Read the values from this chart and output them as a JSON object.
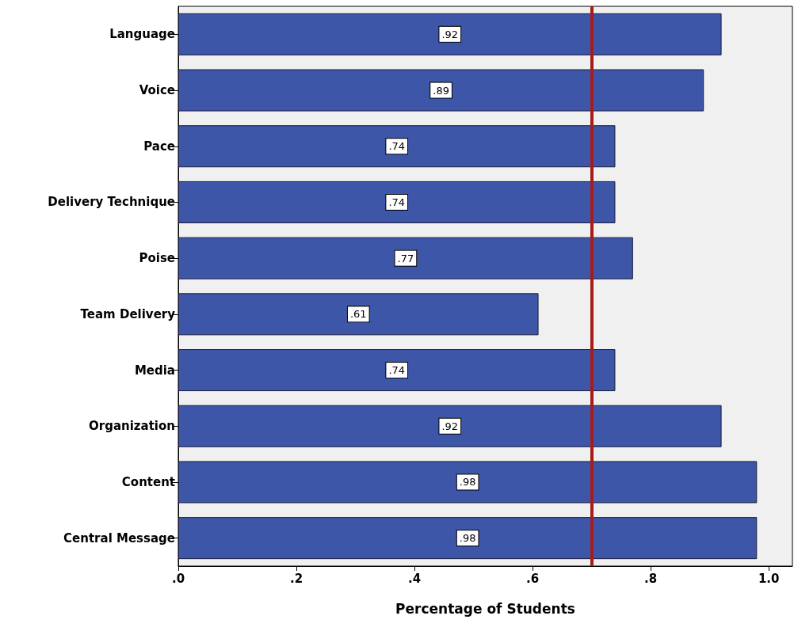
{
  "chart_data": {
    "type": "bar",
    "orientation": "horizontal",
    "xlabel": "Percentage of Students",
    "categories": [
      "Language",
      "Voice",
      "Pace",
      "Delivery Technique",
      "Poise",
      "Team Delivery",
      "Media",
      "Organization",
      "Content",
      "Central Message"
    ],
    "values": [
      0.92,
      0.89,
      0.74,
      0.74,
      0.77,
      0.61,
      0.74,
      0.92,
      0.98,
      0.98
    ],
    "value_labels": [
      ".92",
      ".89",
      ".74",
      ".74",
      ".77",
      ".61",
      ".74",
      ".92",
      ".98",
      ".98"
    ],
    "color": "#3d56a8",
    "xlim": [
      0,
      1.04
    ],
    "xticks": [
      {
        "value": 0,
        "label": ".0"
      },
      {
        "value": 0.2,
        "label": ".2"
      },
      {
        "value": 0.4,
        "label": ".4"
      },
      {
        "value": 0.6,
        "label": ".6"
      },
      {
        "value": 0.8,
        "label": ".8"
      },
      {
        "value": 1.0,
        "label": "1.0"
      }
    ],
    "ref_lines": [
      {
        "axis": "x",
        "value": 0.7,
        "color": "#a61c1c"
      }
    ],
    "grid": false
  }
}
